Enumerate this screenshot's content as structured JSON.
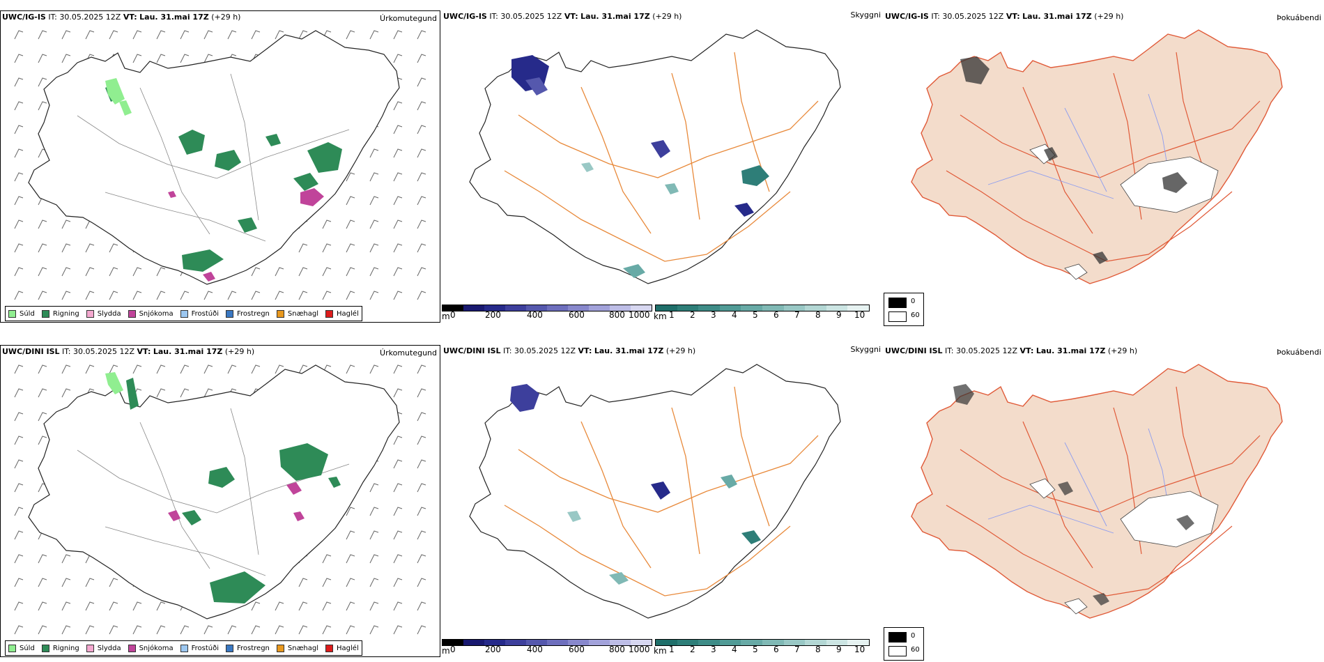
{
  "rows": [
    {
      "model": "UWC/IG-IS",
      "it_label": "IT:",
      "it_value": "30.05.2025 12Z",
      "vt_label": "VT:",
      "vt_value": "Lau. 31.mai 17Z",
      "lead": "(+29 h)"
    },
    {
      "model": "UWC/DINI ISL",
      "it_label": "IT:",
      "it_value": "30.05.2025 12Z",
      "vt_label": "VT:",
      "vt_value": "Lau. 31.mai 17Z",
      "lead": "(+29 h)"
    }
  ],
  "panel_titles": {
    "precip": "Úrkomutegund",
    "cloud": "Skyggni",
    "fog": "Þokuábendi"
  },
  "precip_legend": [
    {
      "label": "Súld",
      "color": "#90ee90"
    },
    {
      "label": "Rigning",
      "color": "#2e8b57"
    },
    {
      "label": "Slydda",
      "color": "#f4a8cf"
    },
    {
      "label": "Snjókoma",
      "color": "#c0449a"
    },
    {
      "label": "Frostúði",
      "color": "#9cc7f0"
    },
    {
      "label": "Frostregn",
      "color": "#3a78c2"
    },
    {
      "label": "Snæhagl",
      "color": "#e8981e"
    },
    {
      "label": "Haglél",
      "color": "#dd1c1c"
    }
  ],
  "cloud_base_scale": {
    "unit": "m",
    "ticks": [
      "0",
      "200",
      "400",
      "600",
      "800",
      "1000"
    ],
    "colors": [
      "#000000",
      "#191970",
      "#262a8a",
      "#3d3f9c",
      "#5558ad",
      "#6e6fbd",
      "#8888cc",
      "#a2a2da",
      "#bdbde6",
      "#d7d7f0"
    ]
  },
  "visibility_scale": {
    "unit": "km",
    "ticks": [
      "1",
      "2",
      "3",
      "4",
      "5",
      "6",
      "7",
      "8",
      "9",
      "10"
    ],
    "colors": [
      "#1f6f6a",
      "#2e7e78",
      "#3e8c87",
      "#519b96",
      "#68aaa6",
      "#80b9b5",
      "#99c8c5",
      "#b3d7d4",
      "#cce5e3",
      "#e6f2f1"
    ]
  },
  "fog_legend": [
    {
      "label": "0",
      "color": "#000000"
    },
    {
      "label": "60",
      "color": "#ffffff"
    }
  ],
  "icons": {
    "wind": "wind-barb-icon"
  }
}
